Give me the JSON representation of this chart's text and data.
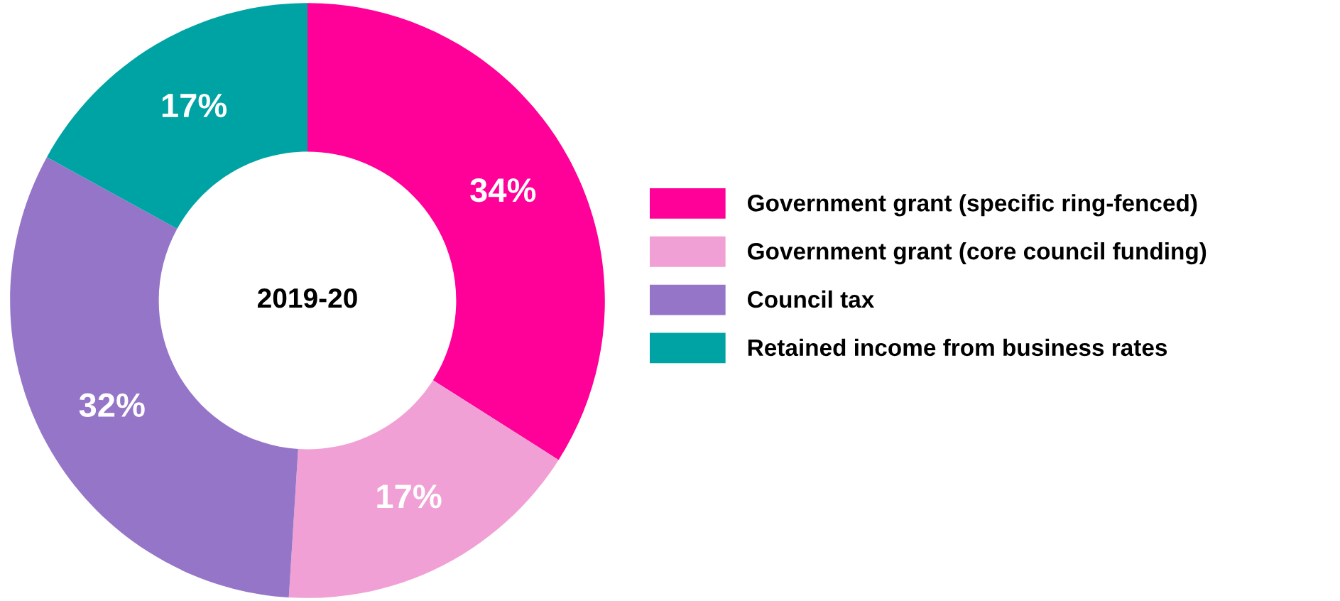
{
  "chart_data": {
    "type": "donut",
    "categories": [
      "Government grant (specific ring-fenced)",
      "Government grant (core council funding)",
      "Council tax",
      "Retained income from business rates"
    ],
    "values": [
      34,
      17,
      32,
      17
    ],
    "colors": [
      "#ff0099",
      "#f0a0d4",
      "#9575c8",
      "#00a3a3"
    ],
    "value_labels": [
      "34%",
      "17%",
      "32%",
      "17%"
    ],
    "annotations": [
      "2019-20"
    ],
    "legend": "right"
  }
}
